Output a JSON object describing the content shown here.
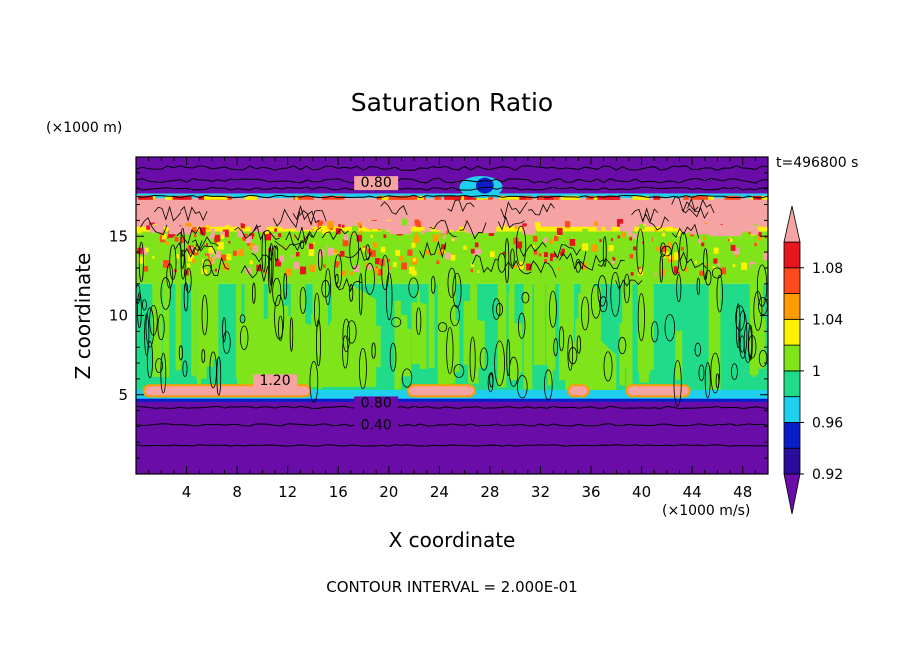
{
  "chart_data": {
    "type": "heatmap",
    "title": "Saturation Ratio",
    "xlabel": "X coordinate",
    "ylabel": "Z coordinate",
    "x_unit": "(×1000 m/s)",
    "y_unit": "(×1000 m)",
    "time_label": "t=496800 s",
    "footer": "CONTOUR INTERVAL = 2.000E-01",
    "xlim": [
      0,
      50
    ],
    "ylim": [
      0,
      20
    ],
    "x_ticks": [
      4,
      8,
      12,
      16,
      20,
      24,
      28,
      32,
      36,
      40,
      44,
      48
    ],
    "y_ticks": [
      5,
      10,
      15
    ],
    "colorbar": {
      "levels": [
        0.92,
        0.94,
        0.96,
        0.98,
        1.0,
        1.02,
        1.04,
        1.06,
        1.08,
        1.1
      ],
      "labels": [
        "0.92",
        "0.96",
        "1",
        "1.04",
        "1.08"
      ],
      "colors": [
        "#6a0ca8",
        "#2b0d9e",
        "#0a1ec8",
        "#1fd0ee",
        "#20dc8a",
        "#80e41a",
        "#fff200",
        "#ff9a00",
        "#ff4a1c",
        "#e8141e",
        "#f5a3a3"
      ],
      "extend": "both"
    },
    "contour_labels": [
      "0.80",
      "1.20",
      "0.80",
      "0.40"
    ],
    "layers": [
      {
        "z_range": [
          0,
          4.5
        ],
        "value": "<0.92"
      },
      {
        "z_range": [
          4.5,
          5.5
        ],
        "value": ">1.10"
      },
      {
        "z_range": [
          5.5,
          12
        ],
        "value": "0.98-1.02"
      },
      {
        "z_range": [
          12,
          15.5
        ],
        "value": "1.00-1.08"
      },
      {
        "z_range": [
          15.5,
          17.5
        ],
        "value": ">1.10"
      },
      {
        "z_range": [
          17.5,
          20
        ],
        "value": "<0.92"
      }
    ]
  }
}
